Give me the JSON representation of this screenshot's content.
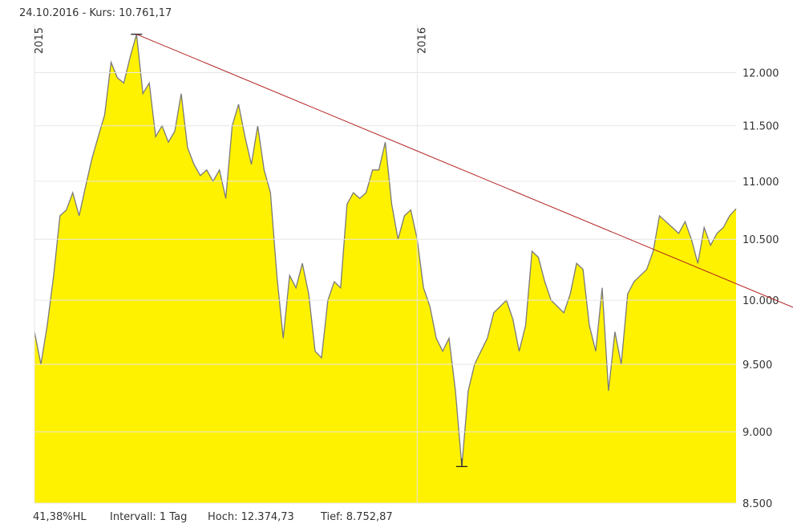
{
  "chart_data": {
    "type": "area",
    "title": "24.10.2016  -  Kurs: 10.761,17",
    "footer": [
      "41,38%HL",
      "Intervall: 1 Tag",
      "Hoch: 12.374,73",
      "Tief: 8.752,87"
    ],
    "categories": [
      "2015",
      null,
      null,
      null,
      null,
      null,
      null,
      null,
      null,
      null,
      null,
      null,
      null,
      null,
      null,
      null,
      null,
      null,
      null,
      null,
      null,
      null,
      null,
      null,
      null,
      null,
      null,
      null,
      null,
      null,
      null,
      null,
      null,
      null,
      null,
      null,
      null,
      null,
      null,
      null,
      null,
      null,
      null,
      null,
      null,
      null,
      null,
      null,
      null,
      null,
      null,
      null,
      null,
      null,
      null,
      null,
      null,
      null,
      null,
      null,
      "2016",
      null,
      null,
      null,
      null,
      null,
      null,
      null,
      null,
      null,
      null,
      null,
      null,
      null,
      null,
      null,
      null,
      null,
      null,
      null,
      null,
      null,
      null,
      null,
      null,
      null,
      null,
      null,
      null,
      null,
      null,
      null,
      null,
      null,
      null,
      null,
      null,
      null,
      null,
      null,
      null,
      null,
      null,
      null,
      null,
      null,
      null,
      null,
      null,
      null,
      null
    ],
    "values": [
      9750,
      9500,
      9800,
      10200,
      10700,
      10750,
      10900,
      10700,
      10950,
      11200,
      11400,
      11600,
      12100,
      11950,
      11900,
      12150,
      12374.73,
      11800,
      11900,
      11400,
      11500,
      11350,
      11450,
      11800,
      11300,
      11150,
      11050,
      11100,
      11000,
      11100,
      10850,
      11500,
      11700,
      11400,
      11150,
      11500,
      11100,
      10900,
      10200,
      9700,
      10200,
      10100,
      10300,
      10050,
      9600,
      9550,
      10000,
      10150,
      10100,
      10800,
      10900,
      10850,
      10900,
      11100,
      11100,
      11350,
      10800,
      10500,
      10700,
      10750,
      10500,
      10100,
      9950,
      9700,
      9600,
      9700,
      9300,
      8752.87,
      9300,
      9500,
      9600,
      9700,
      9900,
      9950,
      10000,
      9850,
      9600,
      9800,
      10400,
      10350,
      10150,
      10000,
      9950,
      9900,
      10050,
      10300,
      10250,
      9800,
      9600,
      10100,
      9300,
      9750,
      9500,
      10050,
      10150,
      10200,
      10250,
      10400,
      10700,
      10650,
      10600,
      10550,
      10650,
      10500,
      10300,
      10600,
      10450,
      10550,
      10600,
      10700,
      10761.17
    ],
    "color": "#fff200",
    "line_color": "#7a7a7a",
    "trend_color": "#b22222",
    "log_scale": true,
    "grid": true,
    "ylim": [
      8500,
      12380
    ],
    "yticks": [
      {
        "value": 8500,
        "label": "8.500"
      },
      {
        "value": 9000,
        "label": "9.000"
      },
      {
        "value": 9500,
        "label": "9.500"
      },
      {
        "value": 10000,
        "label": "10.000"
      },
      {
        "value": 10500,
        "label": "10.500"
      },
      {
        "value": 11000,
        "label": "11.000"
      },
      {
        "value": 11500,
        "label": "11.500"
      },
      {
        "value": 12000,
        "label": "12.000"
      }
    ]
  }
}
